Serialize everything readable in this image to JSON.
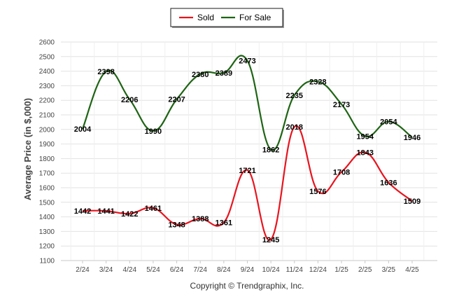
{
  "chart_data": {
    "type": "line",
    "ylabel": "Average Price (in $,000)",
    "ylim": [
      1100,
      2600
    ],
    "ytick_step": 100,
    "grid": true,
    "legend_position": "top-center",
    "categories": [
      "2/24",
      "3/24",
      "4/24",
      "5/24",
      "6/24",
      "7/24",
      "8/24",
      "9/24",
      "10/24",
      "11/24",
      "12/24",
      "1/25",
      "2/25",
      "3/25",
      "4/25"
    ],
    "series": [
      {
        "name": "Sold",
        "color": "#e8141e",
        "values": [
          1442,
          1441,
          1422,
          1461,
          1348,
          1388,
          1361,
          1721,
          1245,
          2018,
          1576,
          1708,
          1843,
          1636,
          1509
        ]
      },
      {
        "name": "For Sale",
        "color": "#1e6414",
        "values": [
          2004,
          2398,
          2206,
          1990,
          2207,
          2380,
          2389,
          2473,
          1862,
          2235,
          2328,
          2173,
          1954,
          2054,
          1946
        ]
      }
    ],
    "footer": "Copyright © Trendgraphix, Inc."
  }
}
